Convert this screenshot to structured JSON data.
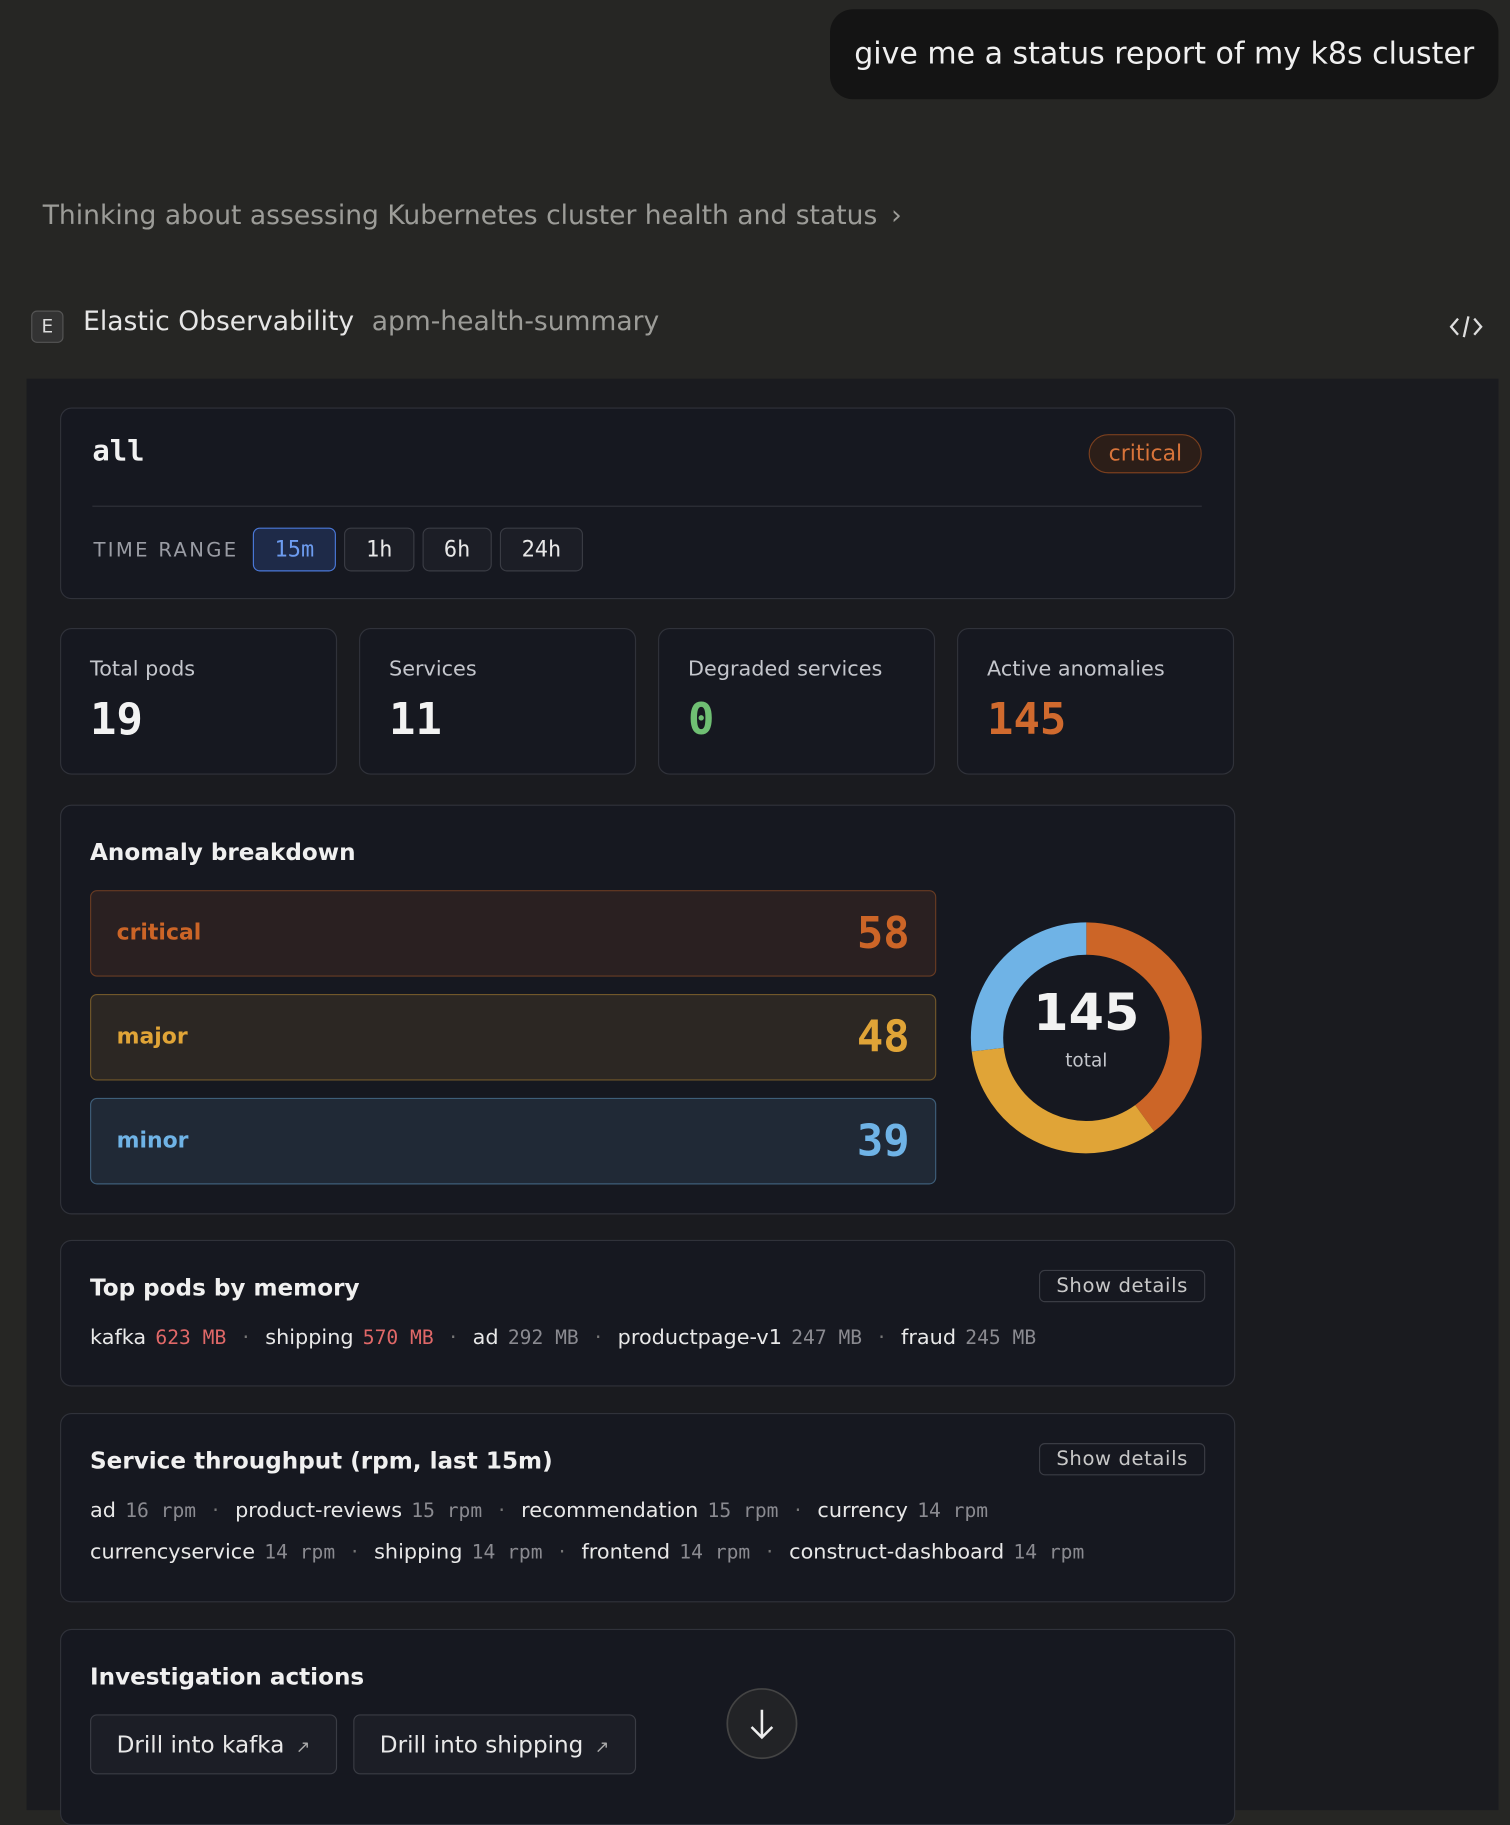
{
  "user_message": "give me a status report of my k8s cluster",
  "thinking": "Thinking about assessing Kubernetes cluster health and status",
  "tool": {
    "icon": "E",
    "name": "Elastic Observability",
    "function": "apm-health-summary"
  },
  "widget": {
    "scope": "all",
    "status": "critical",
    "time_range_label": "TIME RANGE",
    "time_ranges": [
      "15m",
      "1h",
      "6h",
      "24h"
    ],
    "selected_time_range": "15m",
    "stats": [
      {
        "label": "Total pods",
        "value": 19,
        "color": "#f2f2f2"
      },
      {
        "label": "Services",
        "value": 11,
        "color": "#f2f2f2"
      },
      {
        "label": "Degraded services",
        "value": 0,
        "color": "#6fbf73"
      },
      {
        "label": "Active anomalies",
        "value": 145,
        "color": "#d06a2e"
      }
    ],
    "anomaly_breakdown": {
      "title": "Anomaly breakdown",
      "total": 145,
      "total_label": "total",
      "levels": [
        {
          "name": "critical",
          "value": 58,
          "color": "#cc6527"
        },
        {
          "name": "major",
          "value": 48,
          "color": "#e0a437"
        },
        {
          "name": "minor",
          "value": 39,
          "color": "#6fb3e6"
        }
      ]
    },
    "top_pods": {
      "title": "Top pods by memory",
      "button": "Show details",
      "items": [
        {
          "name": "kafka",
          "value": "623 MB",
          "highlight": true
        },
        {
          "name": "shipping",
          "value": "570 MB",
          "highlight": true
        },
        {
          "name": "ad",
          "value": "292 MB",
          "highlight": false
        },
        {
          "name": "productpage-v1",
          "value": "247 MB",
          "highlight": false
        },
        {
          "name": "fraud",
          "value": "245 MB",
          "highlight": false
        }
      ]
    },
    "throughput": {
      "title": "Service throughput (rpm, last 15m)",
      "button": "Show details",
      "items": [
        {
          "name": "ad",
          "value": "16 rpm"
        },
        {
          "name": "product-reviews",
          "value": "15 rpm"
        },
        {
          "name": "recommendation",
          "value": "15 rpm"
        },
        {
          "name": "currency",
          "value": "14 rpm"
        },
        {
          "name": "currencyservice",
          "value": "14 rpm"
        },
        {
          "name": "shipping",
          "value": "14 rpm"
        },
        {
          "name": "frontend",
          "value": "14 rpm"
        },
        {
          "name": "construct-dashboard",
          "value": "14 rpm"
        }
      ]
    },
    "actions": {
      "title": "Investigation actions",
      "items": [
        "Drill into kafka",
        "Drill into shipping"
      ]
    }
  }
}
